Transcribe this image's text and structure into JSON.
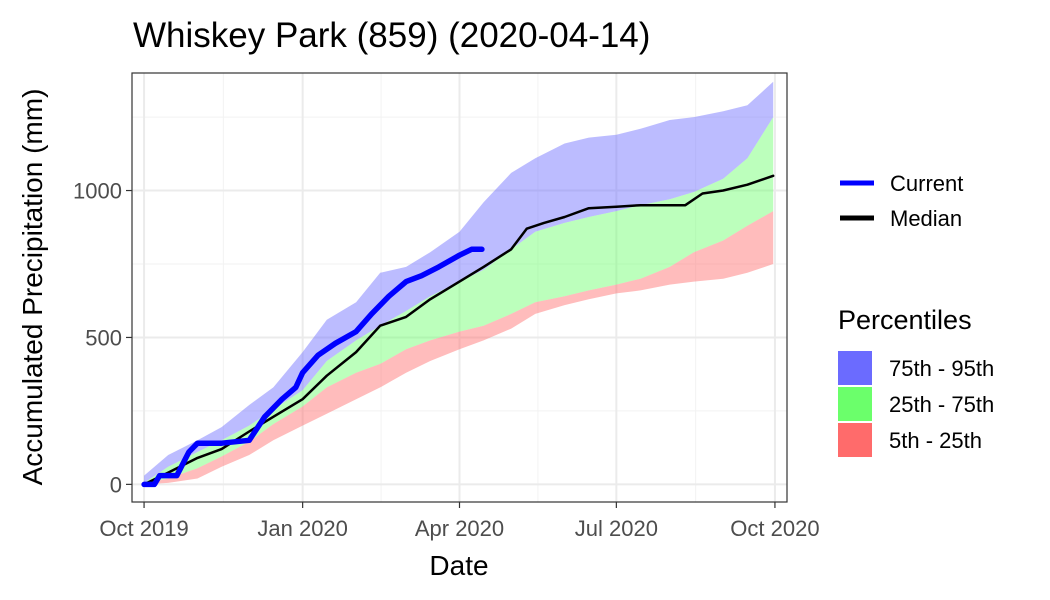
{
  "chart_data": {
    "type": "area",
    "title": "Whiskey Park (859) (2020-04-14)",
    "xlabel": "Date",
    "ylabel": "Accumulated Precipitation (mm)",
    "xlim": [
      "2019-09-24",
      "2020-10-08"
    ],
    "ylim": [
      -60,
      1400
    ],
    "x_ticks": [
      {
        "date": "2019-10-01",
        "label": "Oct 2019"
      },
      {
        "date": "2020-01-01",
        "label": "Jan 2020"
      },
      {
        "date": "2020-04-01",
        "label": "Apr 2020"
      },
      {
        "date": "2020-07-01",
        "label": "Jul 2020"
      },
      {
        "date": "2020-10-01",
        "label": "Oct 2020"
      }
    ],
    "y_ticks": [
      0,
      500,
      1000
    ],
    "grid": true,
    "bands": [
      {
        "name": "75th - 95th",
        "color": "#6b6bff",
        "dates": [
          "2019-10-01",
          "2019-10-15",
          "2019-11-01",
          "2019-11-15",
          "2019-12-01",
          "2019-12-15",
          "2020-01-01",
          "2020-01-15",
          "2020-02-01",
          "2020-02-15",
          "2020-03-01",
          "2020-03-15",
          "2020-04-01",
          "2020-04-15",
          "2020-05-01",
          "2020-05-15",
          "2020-06-01",
          "2020-06-15",
          "2020-07-01",
          "2020-07-15",
          "2020-08-01",
          "2020-08-15",
          "2020-09-01",
          "2020-09-15",
          "2020-09-30"
        ],
        "lower": [
          5,
          60,
          110,
          150,
          200,
          255,
          320,
          420,
          490,
          540,
          590,
          640,
          690,
          730,
          800,
          860,
          890,
          910,
          930,
          950,
          970,
          995,
          1040,
          1110,
          1250
        ],
        "upper": [
          30,
          100,
          150,
          195,
          270,
          330,
          450,
          560,
          620,
          720,
          740,
          790,
          860,
          960,
          1060,
          1110,
          1160,
          1180,
          1190,
          1210,
          1240,
          1250,
          1270,
          1290,
          1370
        ]
      },
      {
        "name": "25th - 75th",
        "color": "#6bff6b",
        "dates": [
          "2019-10-01",
          "2019-10-15",
          "2019-11-01",
          "2019-11-15",
          "2019-12-01",
          "2019-12-15",
          "2020-01-01",
          "2020-01-15",
          "2020-02-01",
          "2020-02-15",
          "2020-03-01",
          "2020-03-15",
          "2020-04-01",
          "2020-04-15",
          "2020-05-01",
          "2020-05-15",
          "2020-06-01",
          "2020-06-15",
          "2020-07-01",
          "2020-07-15",
          "2020-08-01",
          "2020-08-15",
          "2020-09-01",
          "2020-09-15",
          "2020-09-30"
        ],
        "lower": [
          2,
          20,
          55,
          95,
          145,
          205,
          265,
          330,
          380,
          410,
          460,
          490,
          520,
          540,
          580,
          620,
          640,
          660,
          680,
          700,
          740,
          790,
          830,
          880,
          930
        ],
        "upper": [
          5,
          60,
          110,
          150,
          200,
          255,
          320,
          420,
          490,
          540,
          590,
          640,
          690,
          730,
          800,
          860,
          890,
          910,
          930,
          950,
          970,
          995,
          1040,
          1110,
          1250
        ]
      },
      {
        "name": "5th - 25th",
        "color": "#ff6b6b",
        "dates": [
          "2019-10-01",
          "2019-10-15",
          "2019-11-01",
          "2019-11-15",
          "2019-12-01",
          "2019-12-15",
          "2020-01-01",
          "2020-01-15",
          "2020-02-01",
          "2020-02-15",
          "2020-03-01",
          "2020-03-15",
          "2020-04-01",
          "2020-04-15",
          "2020-05-01",
          "2020-05-15",
          "2020-06-01",
          "2020-06-15",
          "2020-07-01",
          "2020-07-15",
          "2020-08-01",
          "2020-08-15",
          "2020-09-01",
          "2020-09-15",
          "2020-09-30"
        ],
        "lower": [
          0,
          5,
          20,
          60,
          100,
          150,
          200,
          240,
          290,
          330,
          380,
          420,
          460,
          490,
          530,
          580,
          610,
          630,
          650,
          660,
          680,
          690,
          700,
          720,
          750
        ],
        "upper": [
          2,
          20,
          55,
          95,
          145,
          205,
          265,
          330,
          380,
          410,
          460,
          490,
          520,
          540,
          580,
          620,
          640,
          660,
          680,
          700,
          740,
          790,
          830,
          880,
          930
        ]
      }
    ],
    "series": [
      {
        "name": "Current",
        "color": "#0000ff",
        "dates": [
          "2019-10-01",
          "2019-10-07",
          "2019-10-10",
          "2019-10-20",
          "2019-10-27",
          "2019-11-01",
          "2019-11-15",
          "2019-12-01",
          "2019-12-10",
          "2019-12-20",
          "2019-12-28",
          "2020-01-01",
          "2020-01-10",
          "2020-01-20",
          "2020-02-01",
          "2020-02-10",
          "2020-02-20",
          "2020-03-01",
          "2020-03-10",
          "2020-03-20",
          "2020-04-01",
          "2020-04-08",
          "2020-04-14"
        ],
        "values": [
          0,
          0,
          30,
          30,
          110,
          140,
          140,
          150,
          230,
          290,
          330,
          380,
          440,
          480,
          520,
          580,
          640,
          690,
          710,
          740,
          780,
          800,
          800
        ]
      },
      {
        "name": "Median",
        "color": "#000000",
        "dates": [
          "2019-10-01",
          "2019-10-15",
          "2019-11-01",
          "2019-11-15",
          "2019-12-01",
          "2019-12-15",
          "2020-01-01",
          "2020-01-15",
          "2020-02-01",
          "2020-02-15",
          "2020-03-01",
          "2020-03-15",
          "2020-04-01",
          "2020-04-15",
          "2020-05-01",
          "2020-05-10",
          "2020-05-20",
          "2020-06-01",
          "2020-06-15",
          "2020-07-01",
          "2020-07-15",
          "2020-08-01",
          "2020-08-10",
          "2020-08-20",
          "2020-09-01",
          "2020-09-15",
          "2020-09-30"
        ],
        "values": [
          0,
          40,
          90,
          120,
          180,
          230,
          290,
          370,
          450,
          540,
          570,
          630,
          690,
          740,
          800,
          870,
          890,
          910,
          940,
          945,
          950,
          950,
          950,
          990,
          1000,
          1020,
          1050
        ]
      }
    ]
  },
  "legend": {
    "lines": [
      {
        "label": "Current",
        "color": "#0000ff"
      },
      {
        "label": "Median",
        "color": "#000000"
      }
    ],
    "percentiles_title": "Percentiles",
    "fills": [
      {
        "label": "75th - 95th",
        "color": "#6b6bff"
      },
      {
        "label": "25th - 75th",
        "color": "#6bff6b"
      },
      {
        "label": "5th - 25th",
        "color": "#ff6b6b"
      }
    ]
  }
}
